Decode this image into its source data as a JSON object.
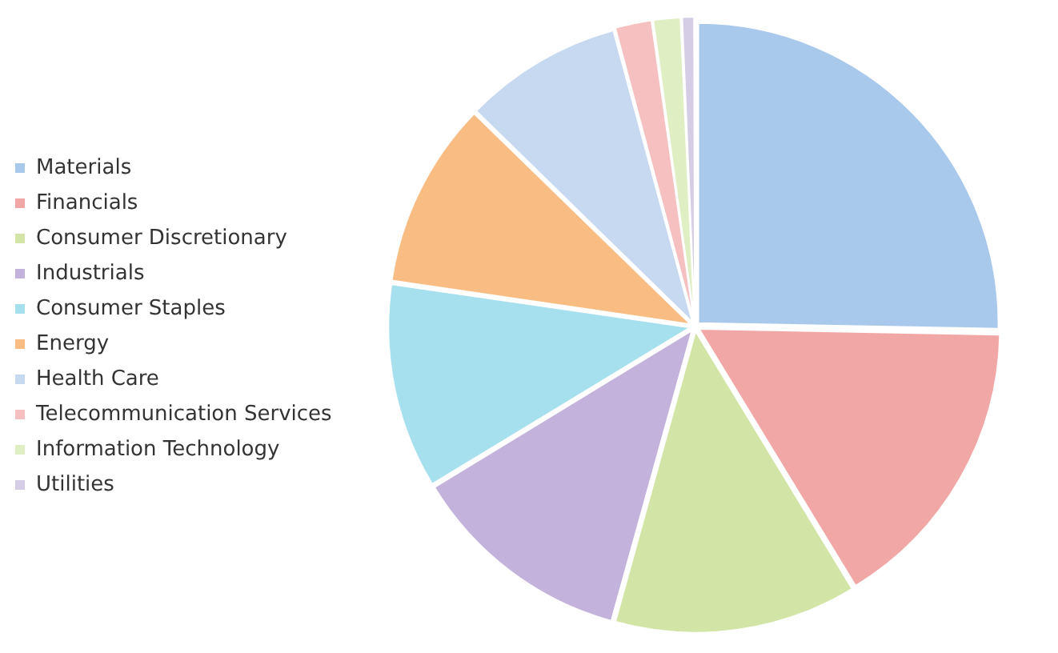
{
  "chart_data": {
    "type": "pie",
    "categories": [
      "Materials",
      "Financials",
      "Consumer Discretionary",
      "Industrials",
      "Consumer Staples",
      "Energy",
      "Health Care",
      "Telecommunication Services",
      "Information Technology",
      "Utilities"
    ],
    "values": [
      25.3,
      16,
      13,
      12,
      11,
      10,
      8.5,
      2,
      1.5,
      0.7
    ],
    "colors": [
      "#a9c9ec",
      "#f2a7a7",
      "#d3e5a6",
      "#c3b3dc",
      "#a6e0ee",
      "#f9bd84",
      "#c6d9f1",
      "#f6c0c0",
      "#e0eec4",
      "#d5cde6"
    ],
    "legend": "left"
  }
}
